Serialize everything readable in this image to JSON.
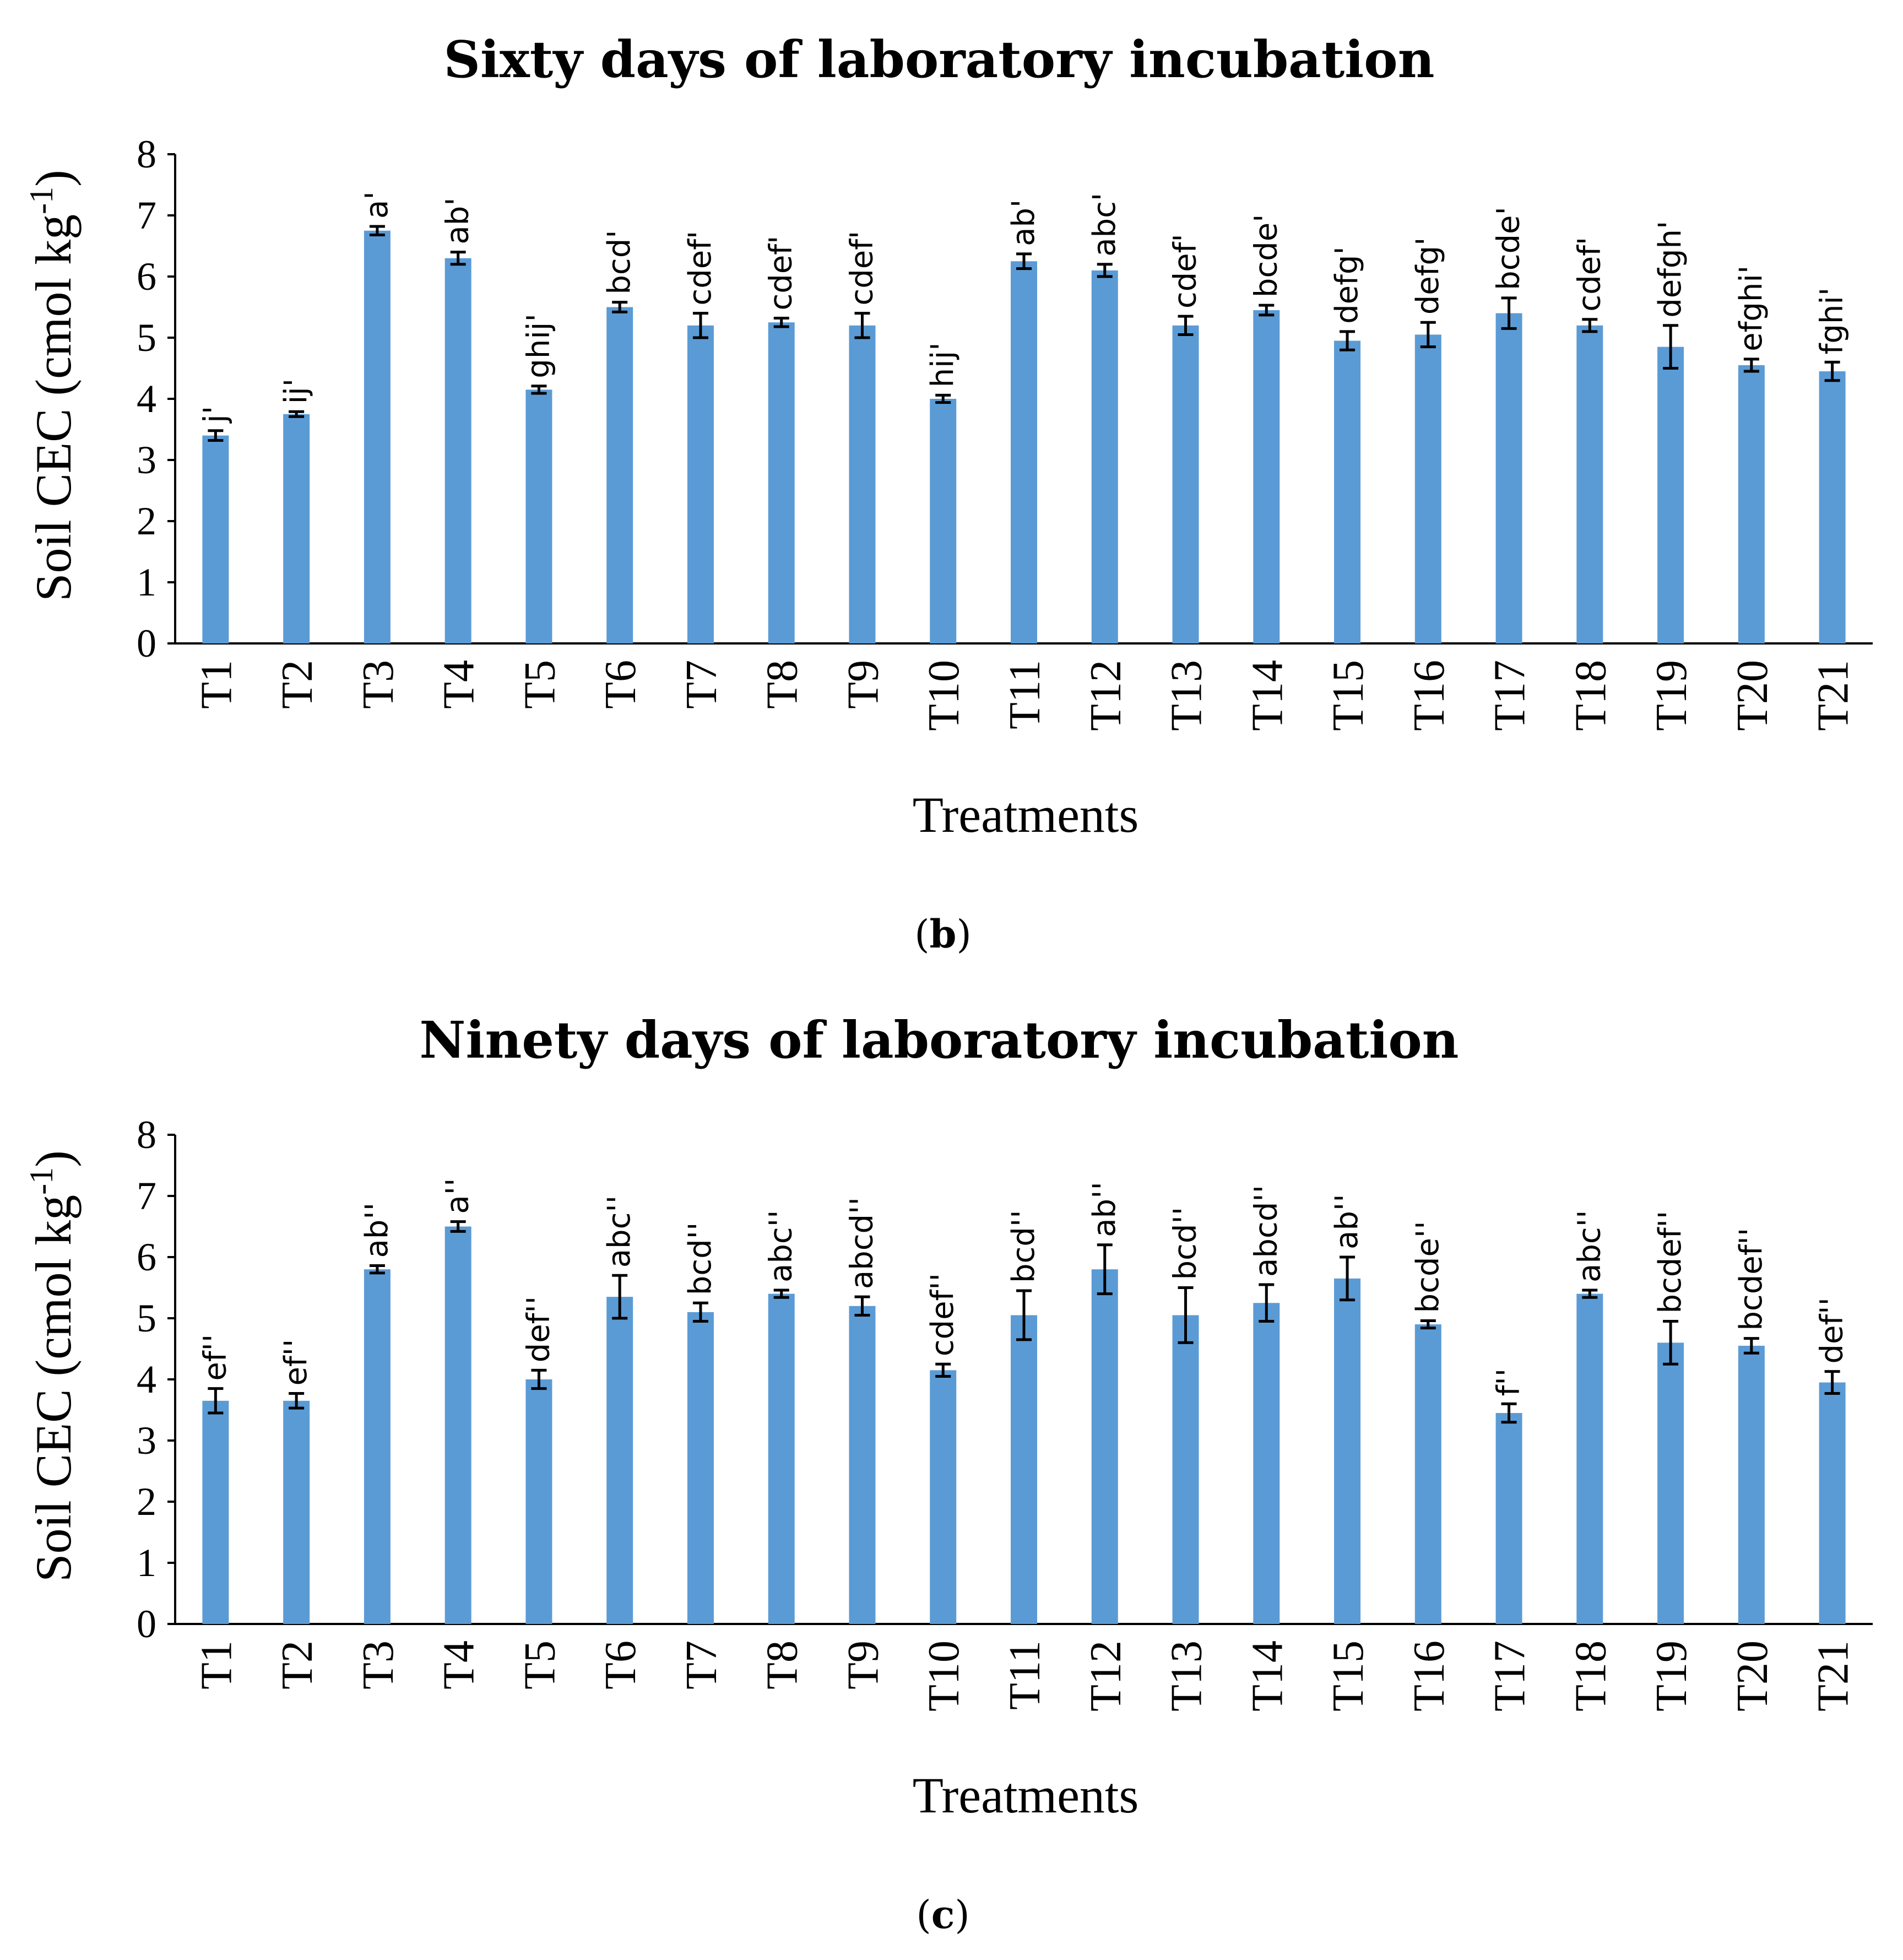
{
  "chart_data": [
    {
      "type": "bar",
      "title": "Sixty days of laboratory incubation",
      "caption": "b",
      "xlabel": "Treatments",
      "ylabel_main": "Soil CEC (cmol kg",
      "ylabel_sup": "-1",
      "ylabel_close": ")",
      "ylim": [
        0,
        8
      ],
      "yticks": [
        0,
        1,
        2,
        3,
        4,
        5,
        6,
        7,
        8
      ],
      "categories": [
        "T1",
        "T2",
        "T3",
        "T4",
        "T5",
        "T6",
        "T7",
        "T8",
        "T9",
        "T10",
        "T11",
        "T12",
        "T13",
        "T14",
        "T15",
        "T16",
        "T17",
        "T18",
        "T19",
        "T20",
        "T21"
      ],
      "values": [
        3.4,
        3.75,
        6.75,
        6.3,
        4.15,
        5.5,
        5.2,
        5.25,
        5.2,
        4.0,
        6.25,
        6.1,
        5.2,
        5.45,
        4.95,
        5.05,
        5.4,
        5.2,
        4.85,
        4.55,
        4.45
      ],
      "errors": [
        0.08,
        0.04,
        0.07,
        0.1,
        0.06,
        0.08,
        0.2,
        0.07,
        0.2,
        0.06,
        0.12,
        0.1,
        0.15,
        0.08,
        0.15,
        0.2,
        0.25,
        0.1,
        0.35,
        0.1,
        0.15
      ],
      "labels": [
        "j'",
        "ij'",
        "a'",
        "ab'",
        "ghij'",
        "bcd'",
        "cdef'",
        "cdef'",
        "cdef'",
        "hij'",
        "ab'",
        "abc'",
        "cdef'",
        "bcde'",
        "defg'",
        "defg'",
        "bcde'",
        "cdef'",
        "defgh'",
        "efghi'",
        "fghi'"
      ]
    },
    {
      "type": "bar",
      "title": "Ninety days of laboratory incubation",
      "caption": "c",
      "xlabel": "Treatments",
      "ylabel_main": "Soil CEC (cmol kg",
      "ylabel_sup": "-1",
      "ylabel_close": ")",
      "ylim": [
        0,
        8
      ],
      "yticks": [
        0,
        1,
        2,
        3,
        4,
        5,
        6,
        7,
        8
      ],
      "categories": [
        "T1",
        "T2",
        "T3",
        "T4",
        "T5",
        "T6",
        "T7",
        "T8",
        "T9",
        "T10",
        "T11",
        "T12",
        "T13",
        "T14",
        "T15",
        "T16",
        "T17",
        "T18",
        "T19",
        "T20",
        "T21"
      ],
      "values": [
        3.65,
        3.65,
        5.8,
        6.5,
        4.0,
        5.35,
        5.1,
        5.4,
        5.2,
        4.15,
        5.05,
        5.8,
        5.05,
        5.25,
        5.65,
        4.9,
        3.45,
        5.4,
        4.6,
        4.55,
        3.95
      ],
      "errors": [
        0.2,
        0.12,
        0.06,
        0.08,
        0.15,
        0.35,
        0.15,
        0.06,
        0.15,
        0.1,
        0.4,
        0.4,
        0.45,
        0.3,
        0.35,
        0.06,
        0.15,
        0.06,
        0.35,
        0.12,
        0.18
      ],
      "labels": [
        "ef''",
        "ef''",
        "ab''",
        "a''",
        "def''",
        "abc''",
        "bcd''",
        "abc''",
        "abcd''",
        "cdef''",
        "bcd''",
        "ab''",
        "bcd''",
        "abcd''",
        "ab''",
        "bcde''",
        "f''",
        "abc''",
        "bcdef''",
        "bcdef''",
        "def''"
      ]
    }
  ],
  "colors": {
    "bar": "#5b9bd5",
    "ink": "#000000"
  }
}
